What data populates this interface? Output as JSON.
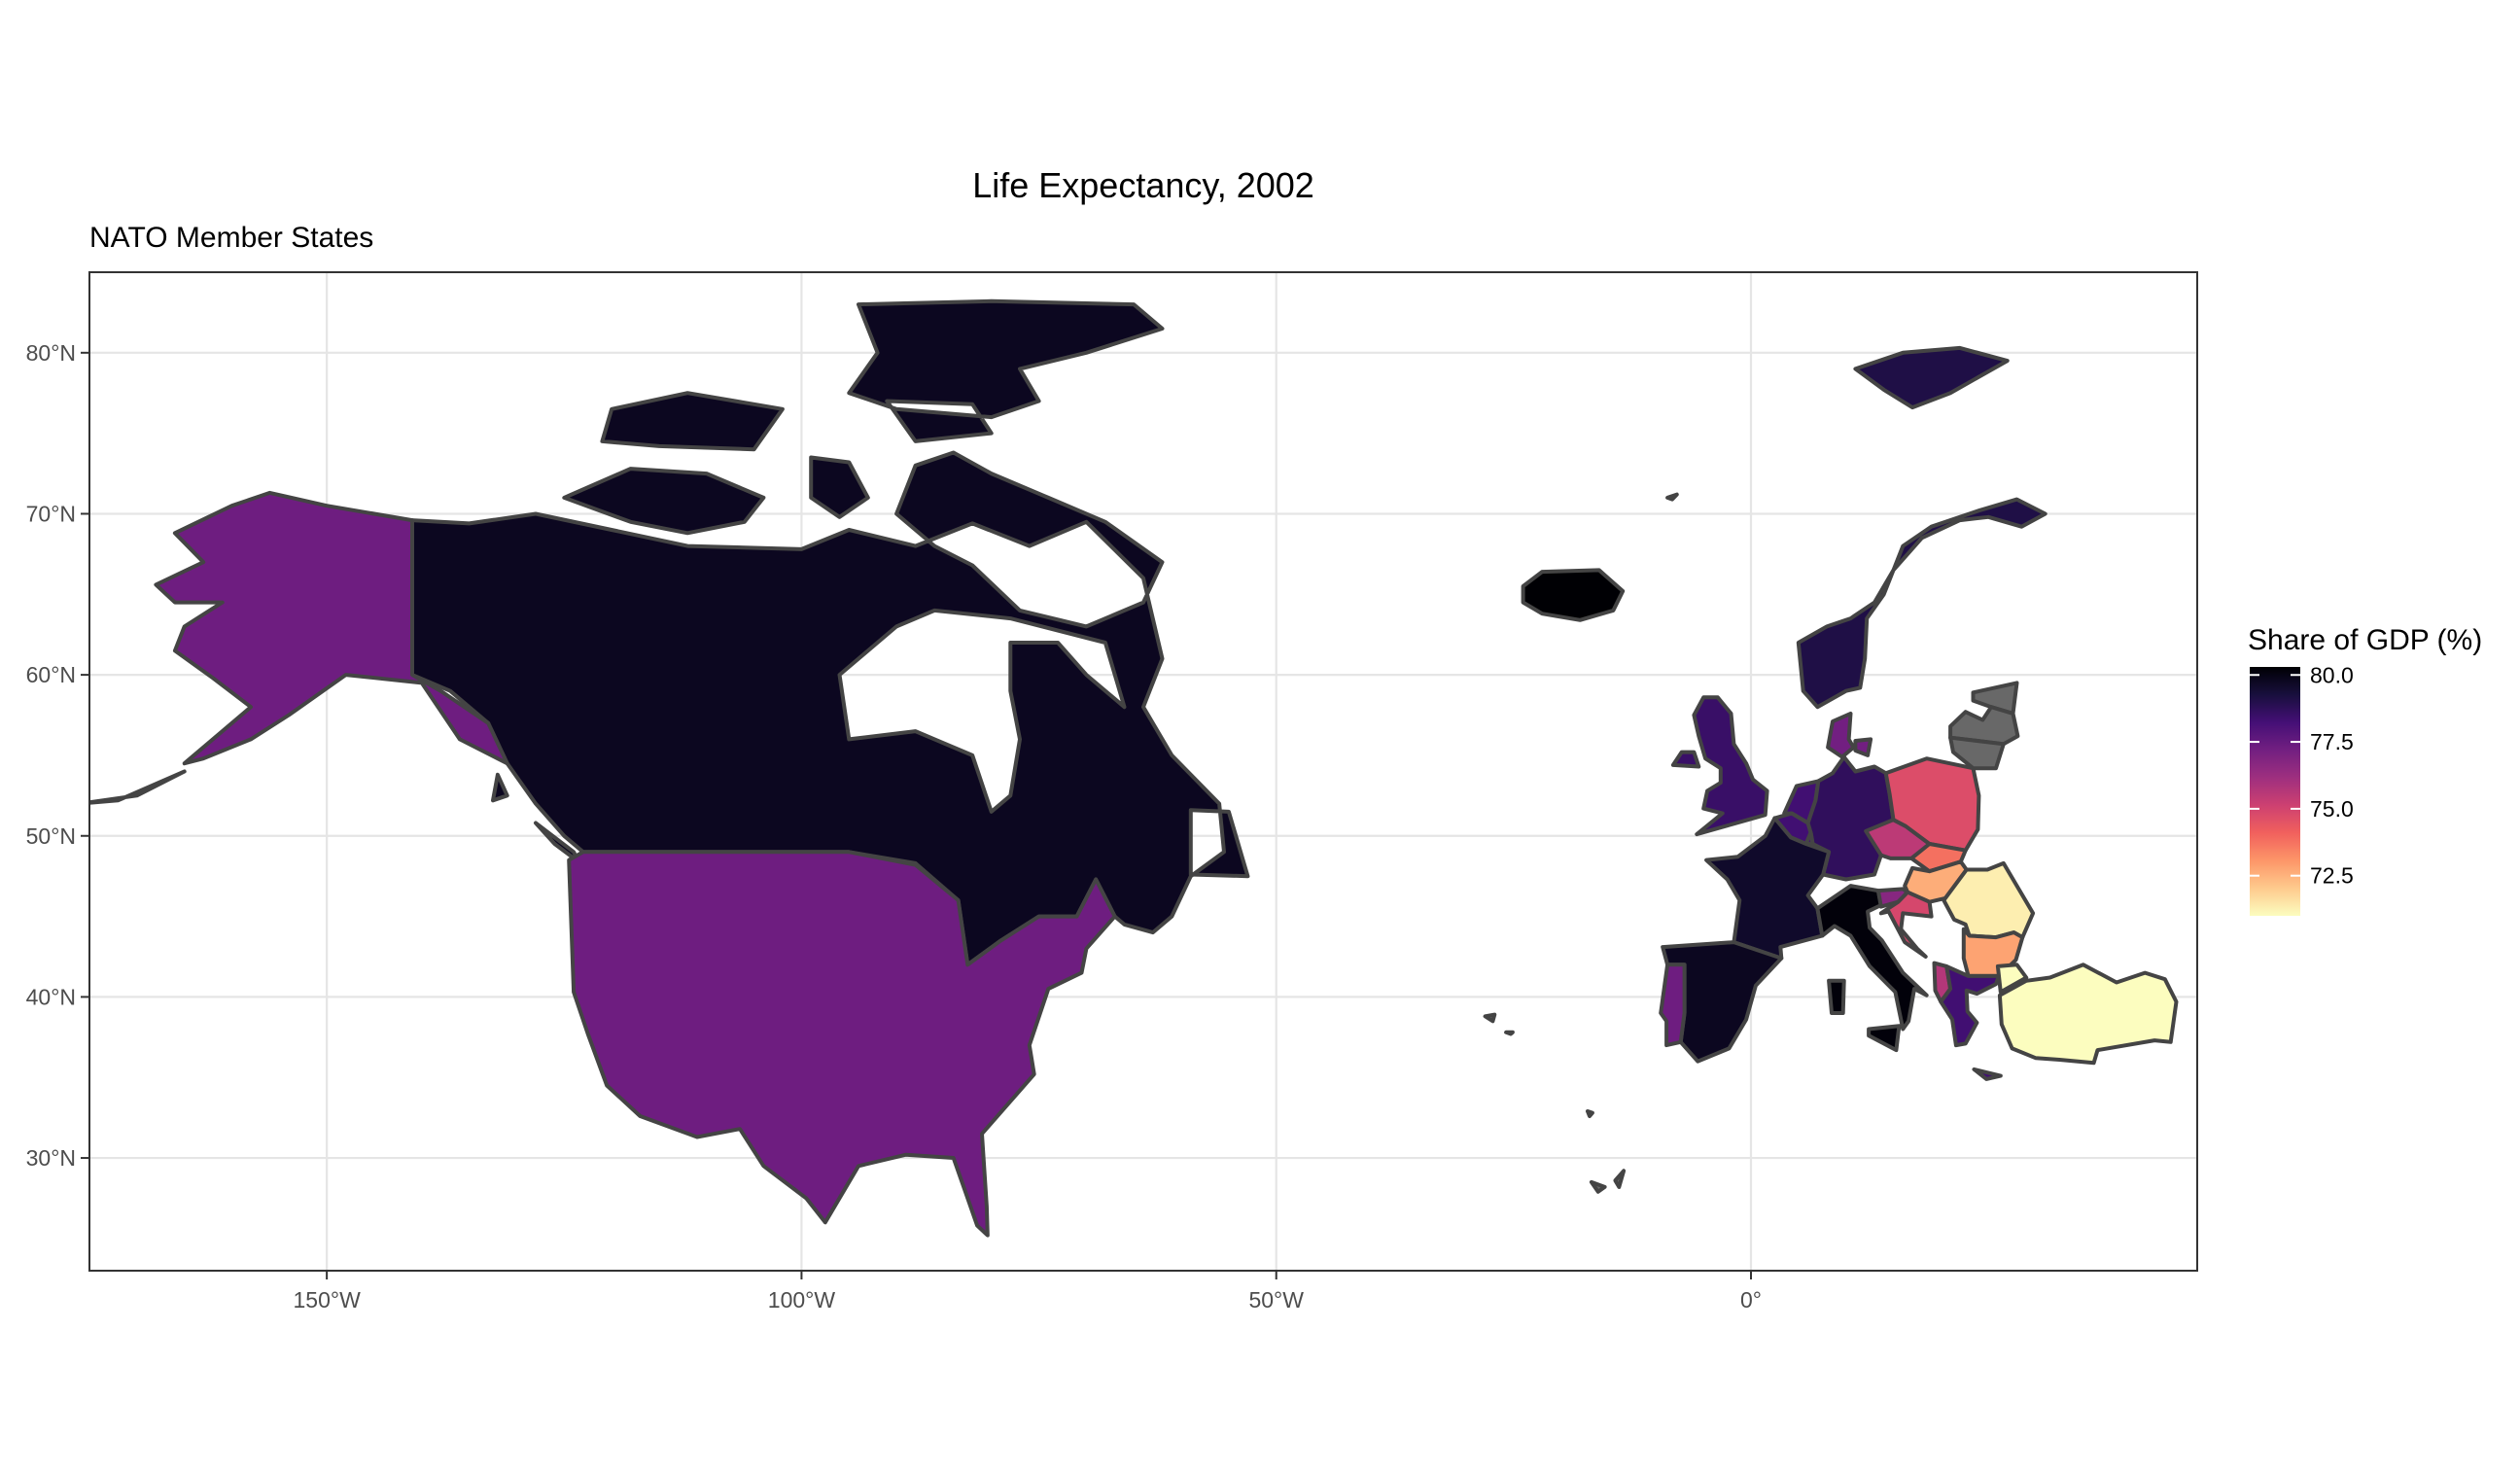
{
  "title": "Life Expectancy, 2002",
  "subtitle": "NATO Member States",
  "legend": {
    "title": "Share of GDP (%)",
    "breaks": [
      "80.0",
      "77.5",
      "75.0",
      "72.5"
    ],
    "break_values": [
      80.0,
      77.5,
      75.0,
      72.5
    ],
    "range": [
      71.0,
      80.3
    ],
    "colors": [
      "#fcfdbf",
      "#feca8d",
      "#fd9668",
      "#f1605d",
      "#cd4071",
      "#9e2f7f",
      "#721f81",
      "#440f76",
      "#180f3d",
      "#000004"
    ]
  },
  "axes": {
    "x_ticks": [
      "150°W",
      "100°W",
      "50°W",
      "0°"
    ],
    "x_tick_values": [
      -150,
      -100,
      -50,
      0
    ],
    "y_ticks": [
      "80°N",
      "70°N",
      "60°N",
      "50°N",
      "40°N",
      "30°N"
    ],
    "y_tick_values": [
      80,
      70,
      60,
      50,
      40,
      30
    ],
    "xlim": [
      -175,
      47
    ],
    "ylim": [
      23,
      85
    ]
  },
  "chart_data": {
    "type": "choropleth",
    "title": "Life Expectancy, 2002",
    "subtitle": "NATO Member States",
    "value_label": "Share of GDP (%)",
    "missing_color": "#686868",
    "regions": [
      {
        "name": "Canada",
        "value": 79.8
      },
      {
        "name": "United States",
        "value": 77.3
      },
      {
        "name": "Iceland",
        "value": 80.5
      },
      {
        "name": "Norway",
        "value": 79.1
      },
      {
        "name": "United Kingdom",
        "value": 78.5
      },
      {
        "name": "Denmark",
        "value": 77.2
      },
      {
        "name": "Netherlands",
        "value": 78.3
      },
      {
        "name": "Belgium",
        "value": 78.3
      },
      {
        "name": "Germany",
        "value": 78.7
      },
      {
        "name": "Luxembourg",
        "value": 78.3
      },
      {
        "name": "France",
        "value": 79.6
      },
      {
        "name": "Spain",
        "value": 79.8
      },
      {
        "name": "Portugal",
        "value": 77.3
      },
      {
        "name": "Italy",
        "value": 80.2
      },
      {
        "name": "Czech Republic",
        "value": 75.5
      },
      {
        "name": "Poland",
        "value": 74.7
      },
      {
        "name": "Slovakia",
        "value": 73.8
      },
      {
        "name": "Hungary",
        "value": 72.6
      },
      {
        "name": "Slovenia",
        "value": 76.7
      },
      {
        "name": "Croatia",
        "value": 74.9
      },
      {
        "name": "Albania",
        "value": 75.7
      },
      {
        "name": "Romania",
        "value": 71.3
      },
      {
        "name": "Bulgaria",
        "value": 72.8
      },
      {
        "name": "Greece",
        "value": 78.3
      },
      {
        "name": "Turkey",
        "value": 70.8
      },
      {
        "name": "Estonia",
        "value": null
      },
      {
        "name": "Latvia",
        "value": null
      },
      {
        "name": "Lithuania",
        "value": null
      }
    ]
  }
}
